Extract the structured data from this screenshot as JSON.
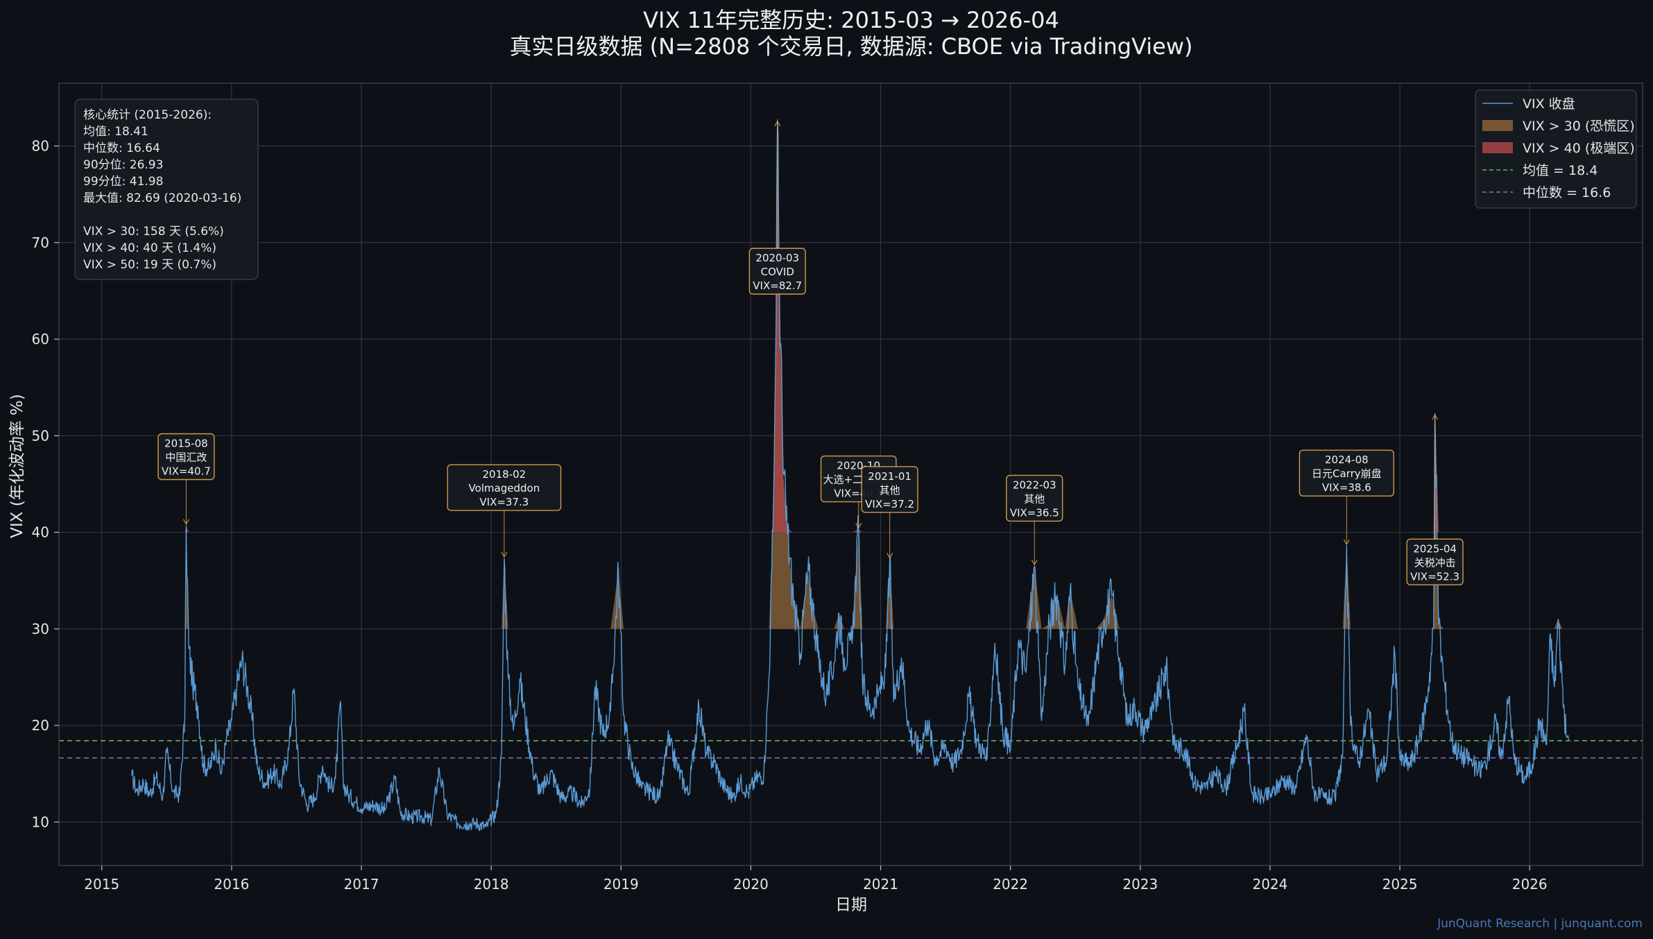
{
  "title": {
    "line1": "VIX 11年完整历史: 2015-03 → 2026-04",
    "line2": "真实日级数据 (N=2808 个交易日, 数据源: CBOE via TradingView)"
  },
  "watermark": "JunQuant Research | junquant.com",
  "stats_box": {
    "lines": [
      "核心统计 (2015-2026):",
      "  均值:   18.41",
      "  中位数:  16.64",
      "  90分位:  26.93",
      "  99分位:  41.98",
      "  最大值:  82.69  (2020-03-16)",
      "",
      "  VIX > 30: 158 天 (5.6%)",
      "  VIX > 40: 40 天 (1.4%)",
      "  VIX > 50: 19 天 (0.7%)"
    ]
  },
  "legend": {
    "position": "top-right",
    "items": [
      {
        "label": "VIX 收盘",
        "kind": "line",
        "color": "#5b9bd5"
      },
      {
        "label": "VIX > 30 (恐慌区)",
        "kind": "patch",
        "color": "#8a6239"
      },
      {
        "label": "VIX > 40 (极端区)",
        "kind": "patch",
        "color": "#a84545"
      },
      {
        "label": "均值 = 18.4",
        "kind": "dashed",
        "color": "#6ab04c"
      },
      {
        "label": "中位数 = 16.6",
        "kind": "dashed",
        "color": "#8e6cc0"
      }
    ]
  },
  "colors": {
    "background": "#0d1117",
    "plot_bg": "#0d1117",
    "grid": "#3a3f47",
    "line": "#5b9bd5",
    "fill30": "#8a6239",
    "fill40": "#a84545",
    "annotation": "#e0a050"
  },
  "chart_data": {
    "type": "line",
    "xlabel": "日期",
    "ylabel": "VIX (年化波动率 %)",
    "xlim": [
      2014.67,
      2026.87
    ],
    "ylim": [
      5.5,
      86.5
    ],
    "xticks": [
      "2015",
      "2016",
      "2017",
      "2018",
      "2019",
      "2020",
      "2021",
      "2022",
      "2023",
      "2024",
      "2025",
      "2026"
    ],
    "yticks": [
      10,
      20,
      30,
      40,
      50,
      60,
      70,
      80
    ],
    "grid": true,
    "mean": 18.41,
    "median": 16.64,
    "threshold_panic": 30,
    "threshold_extreme": 40,
    "series": [
      {
        "name": "VIX 收盘",
        "points": [
          [
            2015.23,
            14.8
          ],
          [
            2015.27,
            13.2
          ],
          [
            2015.32,
            14.1
          ],
          [
            2015.37,
            12.9
          ],
          [
            2015.42,
            14.6
          ],
          [
            2015.47,
            12.6
          ],
          [
            2015.5,
            17.2
          ],
          [
            2015.55,
            13.1
          ],
          [
            2015.6,
            12.8
          ],
          [
            2015.64,
            21.0
          ],
          [
            2015.65,
            40.7
          ],
          [
            2015.67,
            28.0
          ],
          [
            2015.7,
            24.5
          ],
          [
            2015.74,
            22.0
          ],
          [
            2015.78,
            16.0
          ],
          [
            2015.83,
            15.5
          ],
          [
            2015.88,
            18.0
          ],
          [
            2015.92,
            15.0
          ],
          [
            2015.96,
            18.5
          ],
          [
            2016.0,
            20.5
          ],
          [
            2016.04,
            24.0
          ],
          [
            2016.08,
            26.8
          ],
          [
            2016.12,
            24.0
          ],
          [
            2016.16,
            20.5
          ],
          [
            2016.2,
            15.5
          ],
          [
            2016.26,
            14.0
          ],
          [
            2016.32,
            15.2
          ],
          [
            2016.38,
            13.8
          ],
          [
            2016.44,
            17.5
          ],
          [
            2016.48,
            23.8
          ],
          [
            2016.52,
            14.5
          ],
          [
            2016.58,
            11.8
          ],
          [
            2016.64,
            12.5
          ],
          [
            2016.7,
            15.8
          ],
          [
            2016.76,
            13.5
          ],
          [
            2016.8,
            14.5
          ],
          [
            2016.84,
            22.5
          ],
          [
            2016.86,
            14.0
          ],
          [
            2016.9,
            12.8
          ],
          [
            2016.96,
            12.0
          ],
          [
            2017.02,
            11.5
          ],
          [
            2017.1,
            11.8
          ],
          [
            2017.18,
            11.2
          ],
          [
            2017.26,
            14.5
          ],
          [
            2017.3,
            11.0
          ],
          [
            2017.38,
            10.5
          ],
          [
            2017.46,
            10.6
          ],
          [
            2017.54,
            10.2
          ],
          [
            2017.6,
            15.5
          ],
          [
            2017.66,
            10.8
          ],
          [
            2017.74,
            9.9
          ],
          [
            2017.82,
            9.8
          ],
          [
            2017.88,
            9.9
          ],
          [
            2017.96,
            9.5
          ],
          [
            2018.04,
            11.0
          ],
          [
            2018.08,
            17.0
          ],
          [
            2018.1,
            37.3
          ],
          [
            2018.13,
            25.0
          ],
          [
            2018.17,
            19.5
          ],
          [
            2018.22,
            24.8
          ],
          [
            2018.26,
            21.0
          ],
          [
            2018.32,
            15.5
          ],
          [
            2018.38,
            13.0
          ],
          [
            2018.46,
            15.2
          ],
          [
            2018.54,
            12.5
          ],
          [
            2018.62,
            13.0
          ],
          [
            2018.7,
            11.8
          ],
          [
            2018.76,
            13.5
          ],
          [
            2018.8,
            24.0
          ],
          [
            2018.86,
            19.0
          ],
          [
            2018.92,
            21.5
          ],
          [
            2018.98,
            36.1
          ],
          [
            2019.02,
            21.0
          ],
          [
            2019.08,
            16.0
          ],
          [
            2019.16,
            13.5
          ],
          [
            2019.24,
            13.0
          ],
          [
            2019.3,
            12.5
          ],
          [
            2019.36,
            18.5
          ],
          [
            2019.44,
            15.5
          ],
          [
            2019.52,
            12.8
          ],
          [
            2019.6,
            22.0
          ],
          [
            2019.66,
            17.0
          ],
          [
            2019.72,
            16.2
          ],
          [
            2019.78,
            14.0
          ],
          [
            2019.86,
            12.5
          ],
          [
            2019.92,
            14.2
          ],
          [
            2019.98,
            13.0
          ],
          [
            2020.04,
            14.5
          ],
          [
            2020.1,
            15.0
          ],
          [
            2020.14,
            25.0
          ],
          [
            2020.17,
            40.0
          ],
          [
            2020.19,
            57.0
          ],
          [
            2020.205,
            82.7
          ],
          [
            2020.22,
            66.0
          ],
          [
            2020.25,
            46.0
          ],
          [
            2020.28,
            40.5
          ],
          [
            2020.32,
            34.0
          ],
          [
            2020.38,
            27.5
          ],
          [
            2020.44,
            36.0
          ],
          [
            2020.48,
            32.0
          ],
          [
            2020.52,
            27.0
          ],
          [
            2020.58,
            23.0
          ],
          [
            2020.64,
            26.5
          ],
          [
            2020.68,
            31.5
          ],
          [
            2020.72,
            27.0
          ],
          [
            2020.78,
            28.5
          ],
          [
            2020.83,
            40.3
          ],
          [
            2020.86,
            24.5
          ],
          [
            2020.92,
            21.5
          ],
          [
            2020.98,
            23.0
          ],
          [
            2021.04,
            26.0
          ],
          [
            2021.07,
            37.2
          ],
          [
            2021.1,
            22.5
          ],
          [
            2021.16,
            27.0
          ],
          [
            2021.22,
            19.5
          ],
          [
            2021.3,
            17.5
          ],
          [
            2021.36,
            20.5
          ],
          [
            2021.42,
            16.5
          ],
          [
            2021.5,
            18.0
          ],
          [
            2021.56,
            16.0
          ],
          [
            2021.62,
            17.5
          ],
          [
            2021.68,
            23.0
          ],
          [
            2021.74,
            18.5
          ],
          [
            2021.82,
            16.5
          ],
          [
            2021.88,
            28.5
          ],
          [
            2021.94,
            19.5
          ],
          [
            2022.0,
            17.5
          ],
          [
            2022.06,
            28.5
          ],
          [
            2022.12,
            25.5
          ],
          [
            2022.185,
            36.5
          ],
          [
            2022.24,
            20.5
          ],
          [
            2022.3,
            30.5
          ],
          [
            2022.36,
            33.5
          ],
          [
            2022.42,
            26.0
          ],
          [
            2022.46,
            34.0
          ],
          [
            2022.52,
            24.0
          ],
          [
            2022.6,
            20.0
          ],
          [
            2022.66,
            26.5
          ],
          [
            2022.72,
            31.0
          ],
          [
            2022.78,
            33.5
          ],
          [
            2022.84,
            27.0
          ],
          [
            2022.9,
            20.5
          ],
          [
            2022.96,
            22.0
          ],
          [
            2023.02,
            19.5
          ],
          [
            2023.1,
            21.5
          ],
          [
            2023.2,
            26.0
          ],
          [
            2023.26,
            18.0
          ],
          [
            2023.34,
            17.5
          ],
          [
            2023.42,
            14.0
          ],
          [
            2023.5,
            13.5
          ],
          [
            2023.58,
            15.0
          ],
          [
            2023.66,
            13.5
          ],
          [
            2023.74,
            17.5
          ],
          [
            2023.8,
            21.5
          ],
          [
            2023.86,
            13.0
          ],
          [
            2023.94,
            12.5
          ],
          [
            2024.02,
            13.0
          ],
          [
            2024.1,
            14.5
          ],
          [
            2024.2,
            13.5
          ],
          [
            2024.28,
            19.0
          ],
          [
            2024.34,
            13.0
          ],
          [
            2024.42,
            12.5
          ],
          [
            2024.5,
            12.5
          ],
          [
            2024.56,
            17.0
          ],
          [
            2024.59,
            38.6
          ],
          [
            2024.62,
            20.0
          ],
          [
            2024.68,
            16.0
          ],
          [
            2024.76,
            21.5
          ],
          [
            2024.82,
            15.0
          ],
          [
            2024.9,
            16.5
          ],
          [
            2024.96,
            27.5
          ],
          [
            2025.0,
            16.5
          ],
          [
            2025.08,
            16.0
          ],
          [
            2025.16,
            19.0
          ],
          [
            2025.22,
            24.0
          ],
          [
            2025.26,
            30.0
          ],
          [
            2025.27,
            52.3
          ],
          [
            2025.3,
            30.5
          ],
          [
            2025.34,
            24.5
          ],
          [
            2025.4,
            18.5
          ],
          [
            2025.46,
            17.0
          ],
          [
            2025.54,
            16.5
          ],
          [
            2025.6,
            15.2
          ],
          [
            2025.66,
            16.0
          ],
          [
            2025.74,
            20.5
          ],
          [
            2025.78,
            16.5
          ],
          [
            2025.84,
            23.0
          ],
          [
            2025.88,
            16.5
          ],
          [
            2025.96,
            14.5
          ],
          [
            2026.02,
            16.0
          ],
          [
            2026.08,
            20.5
          ],
          [
            2026.13,
            18.0
          ],
          [
            2026.16,
            29.5
          ],
          [
            2026.19,
            24.0
          ],
          [
            2026.22,
            31.0
          ],
          [
            2026.25,
            24.5
          ],
          [
            2026.28,
            19.0
          ],
          [
            2026.3,
            18.5
          ]
        ]
      }
    ],
    "annotations": [
      {
        "date": "2015-08",
        "event": "中国汇改",
        "value_label": "VIX=40.7",
        "x": 2015.65,
        "y": 40.7,
        "box_y": 50.2
      },
      {
        "date": "2018-02",
        "event": "Volmageddon",
        "value_label": "VIX=37.3",
        "x": 2018.1,
        "y": 37.3,
        "box_y": 47.0
      },
      {
        "date": "2020-03",
        "event": "COVID",
        "value_label": "VIX=82.7",
        "x": 2020.205,
        "y": 82.7,
        "box_y": 69.4
      },
      {
        "date": "2020-10",
        "event": "大选+二次疫情",
        "value_label": "VIX=40.3",
        "x": 2020.83,
        "y": 40.3,
        "box_y": 47.9
      },
      {
        "date": "2021-01",
        "event": "其他",
        "value_label": "VIX=37.2",
        "x": 2021.07,
        "y": 37.2,
        "box_y": 46.8
      },
      {
        "date": "2022-03",
        "event": "其他",
        "value_label": "VIX=36.5",
        "x": 2022.185,
        "y": 36.5,
        "box_y": 45.9
      },
      {
        "date": "2024-08",
        "event": "日元Carry崩盘",
        "value_label": "VIX=38.6",
        "x": 2024.59,
        "y": 38.6,
        "box_y": 48.5
      },
      {
        "date": "2025-04",
        "event": "关税冲击",
        "value_label": "VIX=52.3",
        "x": 2025.27,
        "y": 52.3,
        "box_y": 39.3
      }
    ]
  }
}
